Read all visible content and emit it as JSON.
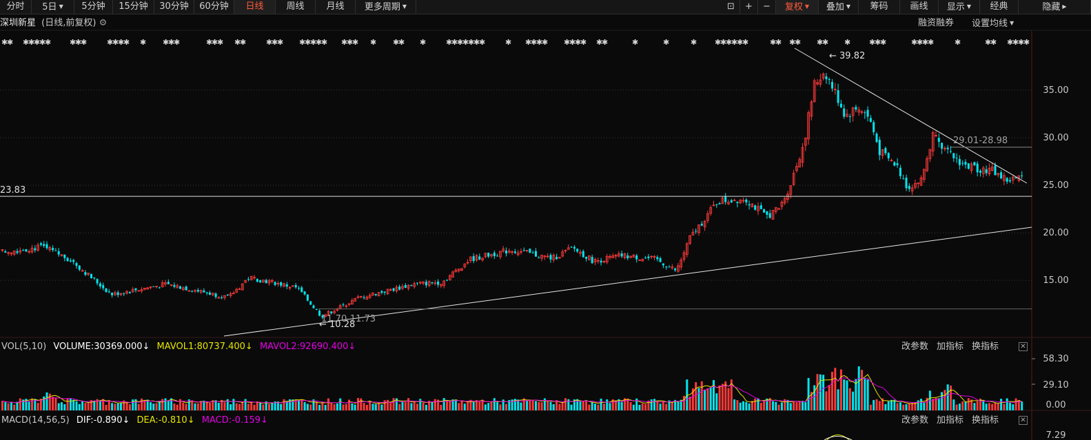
{
  "toolbar": {
    "periods": [
      "分时",
      "5日",
      "5分钟",
      "15分钟",
      "30分钟",
      "60分钟",
      "日线",
      "周线",
      "月线",
      "更多周期"
    ],
    "active": "日线",
    "right": [
      "复权",
      "叠加",
      "筹码",
      "画线",
      "显示",
      "经典",
      "隐藏"
    ],
    "right_active": "复权"
  },
  "stock": {
    "name": "深圳新星",
    "mode": "(日线,前复权)",
    "links": [
      "融资融券",
      "设置均线"
    ]
  },
  "price_axis": {
    "ticks": [
      "35.00",
      "30.00",
      "25.00",
      "20.00",
      "15.00"
    ]
  },
  "annotations": {
    "high": "39.82",
    "low": "10.28",
    "level_left": "23.83",
    "range_upper": "29.01-28.98",
    "range_lower": "11.70-11.73"
  },
  "volume": {
    "name": "VOL(5,10)",
    "volume": "VOLUME:30369.000",
    "mavol1": "MAVOL1:80737.400",
    "mavol2": "MAVOL2:92690.400",
    "ticks": [
      "58.30",
      "29.10",
      "0.00"
    ],
    "colors": {
      "vol": "#ffffff",
      "mavol1": "#e6e600",
      "mavol2": "#e600e6"
    }
  },
  "macd": {
    "name": "MACD(14,56,5)",
    "dif": "DIF:-0.890",
    "dea": "DEA:-0.810",
    "macd": "MACD:-0.159",
    "tick": "7.29",
    "colors": {
      "dif": "#ffffff",
      "dea": "#e6e600",
      "macd": "#e600e6"
    }
  },
  "panel_tools": [
    "改参数",
    "加指标",
    "换指标"
  ],
  "colors": {
    "up": "#ff3a3a",
    "down": "#00e5ee",
    "accent": "#ff5a3c",
    "bg": "#0a0a0a"
  },
  "chart_data": {
    "type": "candlestick",
    "y_range": [
      9,
      41
    ],
    "anchors": [
      [
        0,
        18
      ],
      [
        60,
        18.5
      ],
      [
        100,
        17.2
      ],
      [
        160,
        13.5
      ],
      [
        240,
        14.6
      ],
      [
        330,
        13.2
      ],
      [
        360,
        15.3
      ],
      [
        430,
        14.2
      ],
      [
        465,
        11.2
      ],
      [
        520,
        13.2
      ],
      [
        600,
        14.6
      ],
      [
        640,
        14.8
      ],
      [
        680,
        17.2
      ],
      [
        740,
        18.2
      ],
      [
        800,
        17.3
      ],
      [
        830,
        18.4
      ],
      [
        860,
        17.0
      ],
      [
        900,
        17.6
      ],
      [
        950,
        17.2
      ],
      [
        980,
        16.0
      ],
      [
        1000,
        19.5
      ],
      [
        1040,
        23.3
      ],
      [
        1080,
        23.6
      ],
      [
        1110,
        21.7
      ],
      [
        1130,
        22.6
      ],
      [
        1145,
        25.0
      ],
      [
        1165,
        29.5
      ],
      [
        1180,
        35.5
      ],
      [
        1195,
        37.0
      ],
      [
        1205,
        35.5
      ],
      [
        1215,
        34.0
      ],
      [
        1225,
        32.3
      ],
      [
        1245,
        33.2
      ],
      [
        1260,
        32.0
      ],
      [
        1275,
        28.5
      ],
      [
        1300,
        27.0
      ],
      [
        1315,
        24.8
      ],
      [
        1335,
        25.5
      ],
      [
        1355,
        31.0
      ],
      [
        1370,
        28.5
      ],
      [
        1385,
        27.8
      ],
      [
        1400,
        27.0
      ],
      [
        1440,
        26.5
      ],
      [
        1460,
        25.5
      ],
      [
        1485,
        25.8
      ]
    ]
  }
}
